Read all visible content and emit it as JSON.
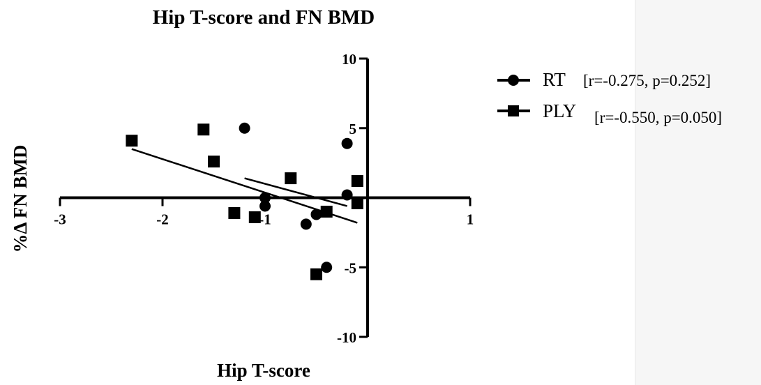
{
  "chart_data": {
    "type": "scatter",
    "title": "Hip T-score and FN BMD",
    "xlabel": "Hip T-score",
    "ylabel": "%Δ FN BMD",
    "xlim": [
      -3,
      1
    ],
    "ylim": [
      -10,
      10
    ],
    "x_ticks": [
      -3,
      -2,
      -1,
      1
    ],
    "x_tick_labels": [
      "-3",
      "-2",
      "-1",
      "1"
    ],
    "y_ticks": [
      10,
      5,
      -5,
      -10
    ],
    "y_tick_labels": [
      "10",
      "5",
      "-5",
      "-10"
    ],
    "grid": false,
    "legend_position": "right",
    "series": [
      {
        "name": "RT",
        "stats": "[r=-0.275,  p=0.252]",
        "marker": "circle",
        "points": [
          {
            "x": -1.2,
            "y": 5.0
          },
          {
            "x": -1.0,
            "y": 0.0
          },
          {
            "x": -1.0,
            "y": -0.6
          },
          {
            "x": -0.6,
            "y": -1.9
          },
          {
            "x": -0.5,
            "y": -1.2
          },
          {
            "x": -0.4,
            "y": -5.0
          },
          {
            "x": -0.2,
            "y": 3.9
          },
          {
            "x": -0.2,
            "y": 0.2
          }
        ],
        "fit": {
          "x": [
            -1.2,
            -0.2
          ],
          "y": [
            1.4,
            -0.6
          ]
        }
      },
      {
        "name": "PLY",
        "stats": "[r=-0.550,  p=0.050]",
        "marker": "square",
        "points": [
          {
            "x": -2.3,
            "y": 4.1
          },
          {
            "x": -1.6,
            "y": 4.9
          },
          {
            "x": -1.5,
            "y": 2.6
          },
          {
            "x": -1.3,
            "y": -1.1
          },
          {
            "x": -1.1,
            "y": -1.4
          },
          {
            "x": -0.75,
            "y": 1.4
          },
          {
            "x": -0.5,
            "y": -5.5
          },
          {
            "x": -0.4,
            "y": -1.0
          },
          {
            "x": -0.1,
            "y": 1.2
          },
          {
            "x": -0.1,
            "y": -0.4
          }
        ],
        "fit": {
          "x": [
            -2.3,
            -0.1
          ],
          "y": [
            3.5,
            -1.8
          ]
        }
      }
    ]
  }
}
